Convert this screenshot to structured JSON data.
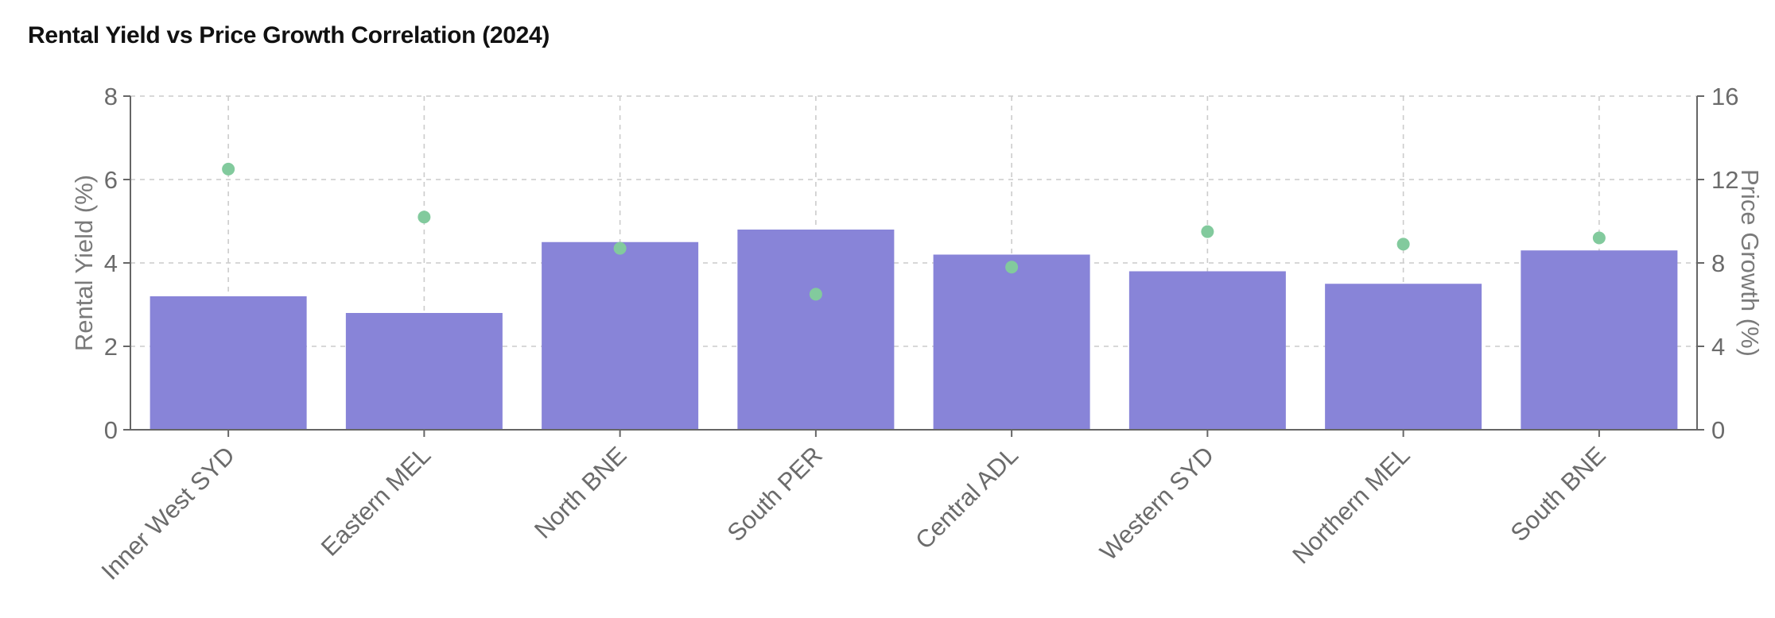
{
  "chart_data": {
    "type": "bar",
    "title": "Rental Yield vs Price Growth Correlation (2024)",
    "categories": [
      "Inner West SYD",
      "Eastern MEL",
      "North BNE",
      "South PER",
      "Central ADL",
      "Western SYD",
      "Northern MEL",
      "South BNE"
    ],
    "series": [
      {
        "name": "Rental Yield (%)",
        "type": "bar",
        "axis": "left",
        "values": [
          3.2,
          2.8,
          4.5,
          4.8,
          4.2,
          3.8,
          3.5,
          4.3
        ]
      },
      {
        "name": "Price Growth (%)",
        "type": "scatter",
        "axis": "right",
        "values": [
          12.5,
          10.2,
          8.7,
          6.5,
          7.8,
          9.5,
          8.9,
          9.2
        ]
      }
    ],
    "ylabel": "Rental Yield (%)",
    "y2label": "Price Growth (%)",
    "ylim": [
      0,
      8
    ],
    "y2lim": [
      0,
      16
    ],
    "yticks": [
      0,
      2,
      4,
      6,
      8
    ],
    "y2ticks": [
      0,
      4,
      8,
      12,
      16
    ],
    "grid": true,
    "colors": {
      "bar": "#8884d8",
      "point": "#82ca9d",
      "axis": "#666666",
      "grid": "#cccccc"
    }
  }
}
